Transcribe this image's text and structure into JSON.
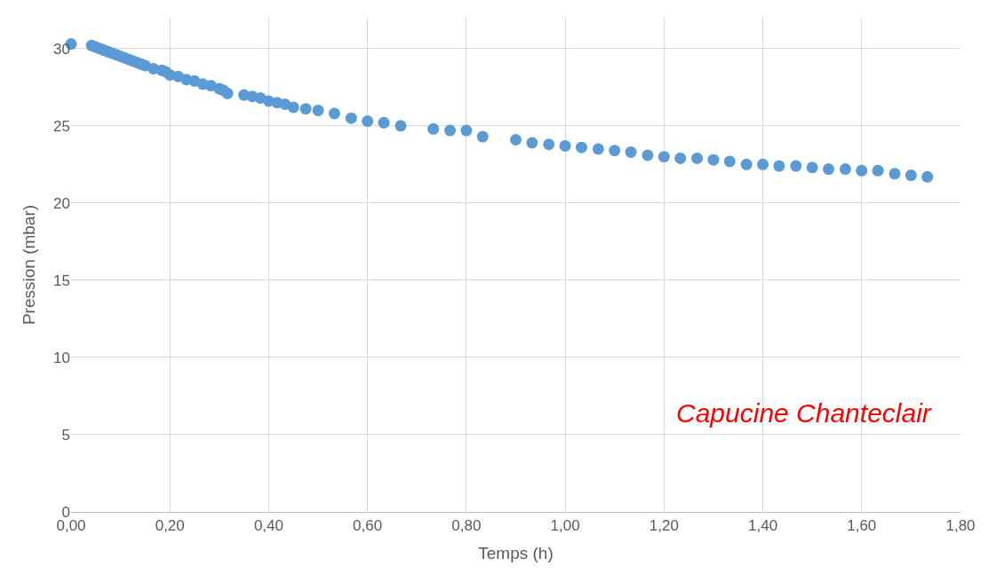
{
  "chart_data": {
    "type": "scatter",
    "xlabel": "Temps (h)",
    "ylabel": "Pression (mbar)",
    "annotations": [
      "Capucine Chanteclair"
    ],
    "x": [
      0,
      0.0417,
      0.05,
      0.0583,
      0.0667,
      0.075,
      0.0833,
      0.0917,
      0.1,
      0.1083,
      0.1167,
      0.125,
      0.1333,
      0.1417,
      0.15,
      0.1667,
      0.1833,
      0.1917,
      0.2,
      0.2167,
      0.2333,
      0.25,
      0.2667,
      0.2833,
      0.3,
      0.3083,
      0.3167,
      0.35,
      0.367,
      0.383,
      0.4,
      0.417,
      0.433,
      0.45,
      0.475,
      0.5,
      0.533,
      0.567,
      0.6,
      0.633,
      0.667,
      0.733,
      0.767,
      0.8,
      0.833,
      0.9,
      0.933,
      0.967,
      1.0,
      1.033,
      1.067,
      1.1,
      1.133,
      1.167,
      1.2,
      1.233,
      1.267,
      1.3,
      1.333,
      1.367,
      1.4,
      1.433,
      1.467,
      1.5,
      1.533,
      1.567,
      1.6,
      1.633,
      1.667,
      1.7,
      1.733
    ],
    "series": [
      {
        "color": "#5b9bd5",
        "values": [
          30.3,
          30.2,
          30.1,
          30.0,
          29.9,
          29.8,
          29.7,
          29.6,
          29.5,
          29.4,
          29.3,
          29.2,
          29.1,
          29.0,
          28.9,
          28.7,
          28.6,
          28.5,
          28.3,
          28.2,
          28.0,
          27.9,
          27.7,
          27.6,
          27.4,
          27.3,
          27.1,
          27.0,
          26.9,
          26.8,
          26.6,
          26.5,
          26.4,
          26.2,
          26.1,
          26.0,
          25.8,
          25.5,
          25.3,
          25.2,
          25.0,
          24.8,
          24.7,
          24.7,
          24.3,
          24.1,
          23.9,
          23.8,
          23.7,
          23.6,
          23.5,
          23.4,
          23.3,
          23.1,
          23.0,
          22.9,
          22.9,
          22.8,
          22.7,
          22.5,
          22.5,
          22.4,
          22.4,
          22.3,
          22.2,
          22.2,
          22.1,
          22.1,
          21.9,
          21.8,
          21.7
        ]
      }
    ],
    "xlim": [
      0,
      1.8
    ],
    "ylim": [
      0,
      32
    ],
    "xticks": [
      {
        "value": 0,
        "label": "0,00"
      },
      {
        "value": 0.2,
        "label": "0,20"
      },
      {
        "value": 0.4,
        "label": "0,40"
      },
      {
        "value": 0.6,
        "label": "0,60"
      },
      {
        "value": 0.8,
        "label": "0,80"
      },
      {
        "value": 1.0,
        "label": "1,00"
      },
      {
        "value": 1.2,
        "label": "1,20"
      },
      {
        "value": 1.4,
        "label": "1,40"
      },
      {
        "value": 1.6,
        "label": "1,60"
      },
      {
        "value": 1.8,
        "label": "1,80"
      }
    ],
    "yticks": [
      0,
      5,
      10,
      15,
      20,
      25,
      30
    ],
    "grid": true,
    "marker": "circle",
    "legend": false
  }
}
